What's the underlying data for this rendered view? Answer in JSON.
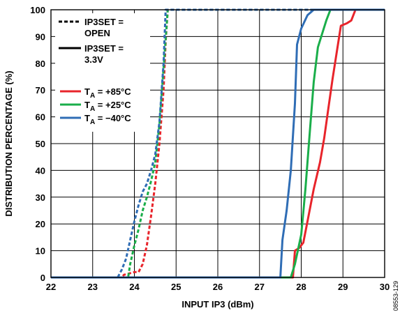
{
  "chart_data": {
    "type": "line",
    "xlabel": "INPUT IP3 (dBm)",
    "ylabel": "DISTRIBUTION PERCENTAGE (%)",
    "xlim": [
      22,
      30
    ],
    "ylim": [
      0,
      100
    ],
    "x_ticks": [
      "22",
      "23",
      "24",
      "25",
      "26",
      "27",
      "28",
      "29",
      "30"
    ],
    "y_ticks": [
      "0",
      "10",
      "20",
      "30",
      "40",
      "50",
      "60",
      "70",
      "80",
      "90",
      "100"
    ],
    "grid": true,
    "legend_style": {
      "dashed": [
        "IP3SET =",
        "OPEN"
      ],
      "solid": [
        "IP3SET =",
        "3.3V"
      ]
    },
    "legend_temps": [
      {
        "prefix": "T",
        "sub": "A",
        "rest": " = +85°C",
        "color": "#e8242b"
      },
      {
        "prefix": "T",
        "sub": "A",
        "rest": " = +25°C",
        "color": "#1aae4a"
      },
      {
        "prefix": "T",
        "sub": "A",
        "rest": " = −40°C",
        "color": "#2f6db5"
      }
    ],
    "series": [
      {
        "style": "dashed",
        "color": "#e8242b",
        "points": [
          [
            22.0,
            0
          ],
          [
            23.7,
            0
          ],
          [
            23.75,
            1
          ],
          [
            24.0,
            2
          ],
          [
            24.1,
            2
          ],
          [
            24.2,
            5
          ],
          [
            24.3,
            12
          ],
          [
            24.4,
            23
          ],
          [
            24.5,
            35
          ],
          [
            24.6,
            50
          ],
          [
            24.7,
            70
          ],
          [
            24.75,
            88
          ],
          [
            24.8,
            100
          ],
          [
            30.0,
            100
          ]
        ]
      },
      {
        "style": "dashed",
        "color": "#1aae4a",
        "points": [
          [
            22.0,
            0
          ],
          [
            23.85,
            0
          ],
          [
            23.9,
            5
          ],
          [
            24.0,
            12
          ],
          [
            24.1,
            18
          ],
          [
            24.2,
            25
          ],
          [
            24.3,
            30
          ],
          [
            24.4,
            36
          ],
          [
            24.5,
            43
          ],
          [
            24.6,
            57
          ],
          [
            24.7,
            78
          ],
          [
            24.8,
            100
          ],
          [
            30.0,
            100
          ]
        ]
      },
      {
        "style": "dashed",
        "color": "#2f6db5",
        "points": [
          [
            22.0,
            0
          ],
          [
            23.6,
            0
          ],
          [
            23.7,
            3
          ],
          [
            23.8,
            7
          ],
          [
            23.9,
            14
          ],
          [
            24.0,
            21
          ],
          [
            24.1,
            27
          ],
          [
            24.2,
            32
          ],
          [
            24.3,
            35
          ],
          [
            24.4,
            40
          ],
          [
            24.5,
            46
          ],
          [
            24.6,
            58
          ],
          [
            24.7,
            80
          ],
          [
            24.75,
            100
          ],
          [
            30.0,
            100
          ]
        ]
      },
      {
        "style": "solid",
        "color": "#e8242b",
        "points": [
          [
            22.0,
            0
          ],
          [
            27.8,
            0
          ],
          [
            27.85,
            10
          ],
          [
            27.95,
            11
          ],
          [
            28.05,
            13
          ],
          [
            28.15,
            21
          ],
          [
            28.3,
            33
          ],
          [
            28.45,
            43
          ],
          [
            28.55,
            52
          ],
          [
            28.65,
            63
          ],
          [
            28.75,
            74
          ],
          [
            28.85,
            84
          ],
          [
            28.95,
            94
          ],
          [
            29.1,
            95
          ],
          [
            29.2,
            96
          ],
          [
            29.3,
            100
          ],
          [
            30.0,
            100
          ]
        ]
      },
      {
        "style": "solid",
        "color": "#1aae4a",
        "points": [
          [
            22.0,
            0
          ],
          [
            27.75,
            0
          ],
          [
            27.85,
            5
          ],
          [
            28.0,
            16
          ],
          [
            28.1,
            33
          ],
          [
            28.2,
            53
          ],
          [
            28.3,
            73
          ],
          [
            28.4,
            86
          ],
          [
            28.5,
            91
          ],
          [
            28.6,
            96
          ],
          [
            28.7,
            100
          ],
          [
            30.0,
            100
          ]
        ]
      },
      {
        "style": "solid",
        "color": "#2f6db5",
        "points": [
          [
            22.0,
            0
          ],
          [
            27.5,
            0
          ],
          [
            27.55,
            14
          ],
          [
            27.65,
            25
          ],
          [
            27.75,
            40
          ],
          [
            27.85,
            65
          ],
          [
            27.9,
            87
          ],
          [
            28.0,
            93
          ],
          [
            28.15,
            98
          ],
          [
            28.3,
            100
          ],
          [
            30.0,
            100
          ]
        ]
      }
    ]
  },
  "watermark": "08553-129"
}
